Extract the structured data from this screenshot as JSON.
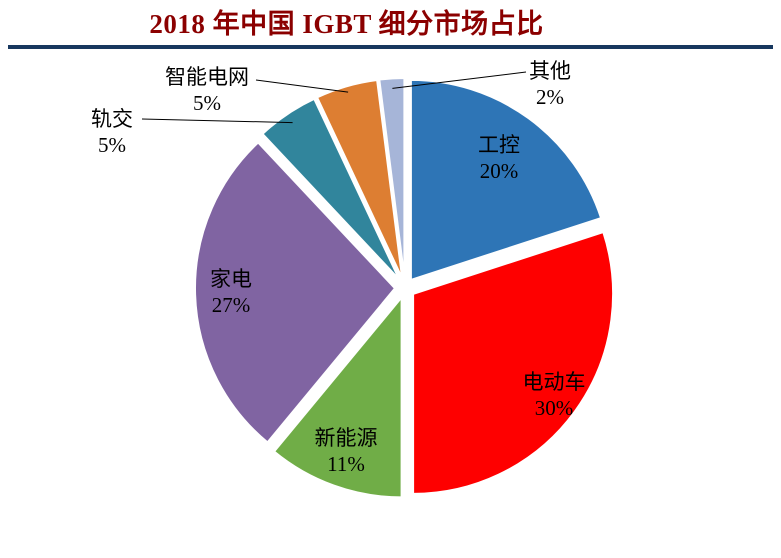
{
  "chart": {
    "title": "2018 年中国 IGBT 细分市场占比"
  },
  "chart_data": {
    "type": "pie",
    "title": "2018 年中国 IGBT 细分市场占比",
    "categories": [
      "工控",
      "电动车",
      "新能源",
      "家电",
      "轨交",
      "智能电网",
      "其他"
    ],
    "values": [
      20,
      30,
      11,
      27,
      5,
      5,
      2
    ],
    "unit": "%",
    "labels": [
      "工控 20%",
      "电动车 30%",
      "新能源 11%",
      "家电 27%",
      "轨交 5%",
      "智能电网 5%",
      "其他 2%"
    ],
    "colors": [
      "#2E75B6",
      "#FE0000",
      "#70AD47",
      "#8064A2",
      "#31859C",
      "#DD7E32",
      "#A6B5D8"
    ],
    "start_angle_deg": 0,
    "direction": "clockwise",
    "exploded": true,
    "legend": "none",
    "label_style": "category name above percent value",
    "outside_label_categories": [
      "轨交",
      "智能电网",
      "其他"
    ],
    "background": "#FFFFFF",
    "title_color": "#8B0000",
    "title_rule_color": "#17375E",
    "leader_line_color": "#000000",
    "label_text_color": "#000000"
  }
}
